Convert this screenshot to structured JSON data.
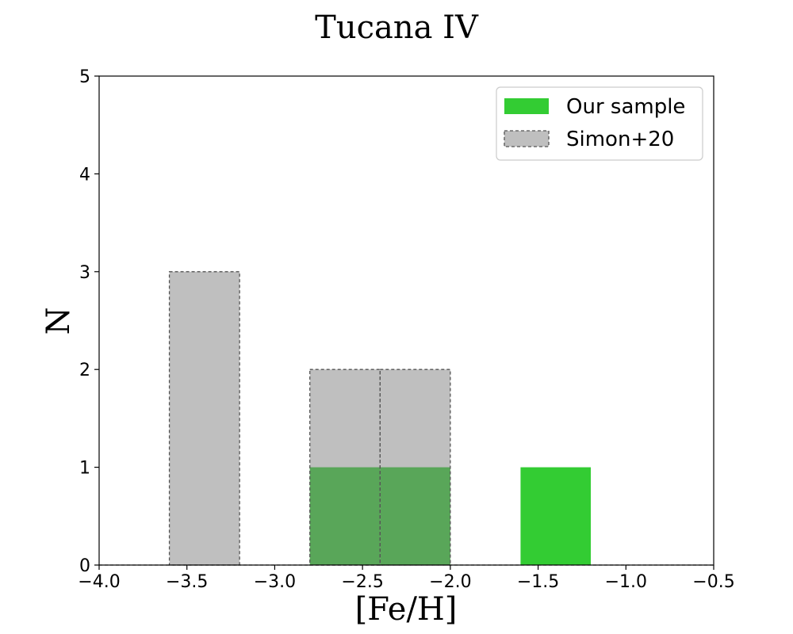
{
  "chart_data": {
    "type": "bar",
    "title": "Tucana IV",
    "xlabel": "[Fe/H]",
    "ylabel": "N",
    "xlim": [
      -4.0,
      -0.5
    ],
    "ylim": [
      0,
      5
    ],
    "xticks": [
      -4.0,
      -3.5,
      -3.0,
      -2.5,
      -2.0,
      -1.5,
      -1.0,
      -0.5
    ],
    "xtick_labels": [
      "−4.0",
      "−3.5",
      "−3.0",
      "−2.5",
      "−2.0",
      "−1.5",
      "−1.0",
      "−0.5"
    ],
    "yticks": [
      0,
      1,
      2,
      3,
      4,
      5
    ],
    "ytick_labels": [
      "0",
      "1",
      "2",
      "3",
      "4",
      "5"
    ],
    "legend_position": "top-right",
    "series": [
      {
        "name": "Our sample",
        "color": "#33cc33",
        "style": "filled",
        "bins": [
          {
            "x0": -2.8,
            "x1": -2.4,
            "count": 1
          },
          {
            "x0": -2.4,
            "x1": -2.0,
            "count": 1
          },
          {
            "x0": -1.6,
            "x1": -1.2,
            "count": 1
          }
        ]
      },
      {
        "name": "Simon+20",
        "color": "#808080",
        "edge_color": "#555555",
        "style": "dashed-outline",
        "bins": [
          {
            "x0": -3.6,
            "x1": -3.2,
            "count": 3
          },
          {
            "x0": -2.8,
            "x1": -2.4,
            "count": 2
          },
          {
            "x0": -2.4,
            "x1": -2.0,
            "count": 2
          }
        ]
      }
    ]
  }
}
